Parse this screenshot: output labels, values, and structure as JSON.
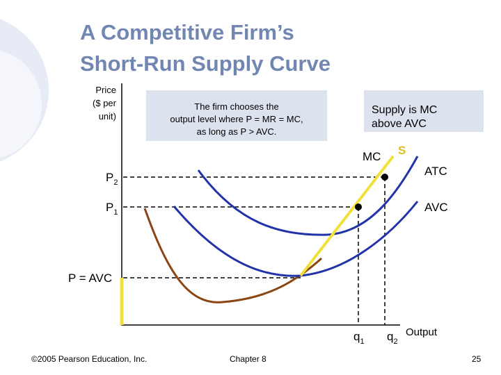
{
  "title": [
    "A Competitive Firm’s",
    "Short-Run Supply Curve"
  ],
  "y_axis_label": [
    "Price",
    "($ per",
    "unit)"
  ],
  "x_axis_label": "Output",
  "callouts": [
    {
      "lines": [
        "The firm chooses the",
        "output level where P = MR = MC,",
        "as long as P > AVC."
      ]
    },
    {
      "lines": [
        "Supply is MC",
        "above AVC"
      ]
    }
  ],
  "price_levels": [
    {
      "base": "P",
      "sub": "2"
    },
    {
      "base": "P",
      "sub": "1"
    },
    {
      "label": "P = AVC"
    }
  ],
  "quantities": [
    {
      "base": "q",
      "sub": "1"
    },
    {
      "base": "q",
      "sub": "2"
    }
  ],
  "curves": {
    "mc": "MC",
    "supply": "S",
    "atc": "ATC",
    "avc": "AVC"
  },
  "footer": {
    "copyright": "©2005 Pearson Education, Inc.",
    "chapter": "Chapter 8",
    "page": "25"
  }
}
